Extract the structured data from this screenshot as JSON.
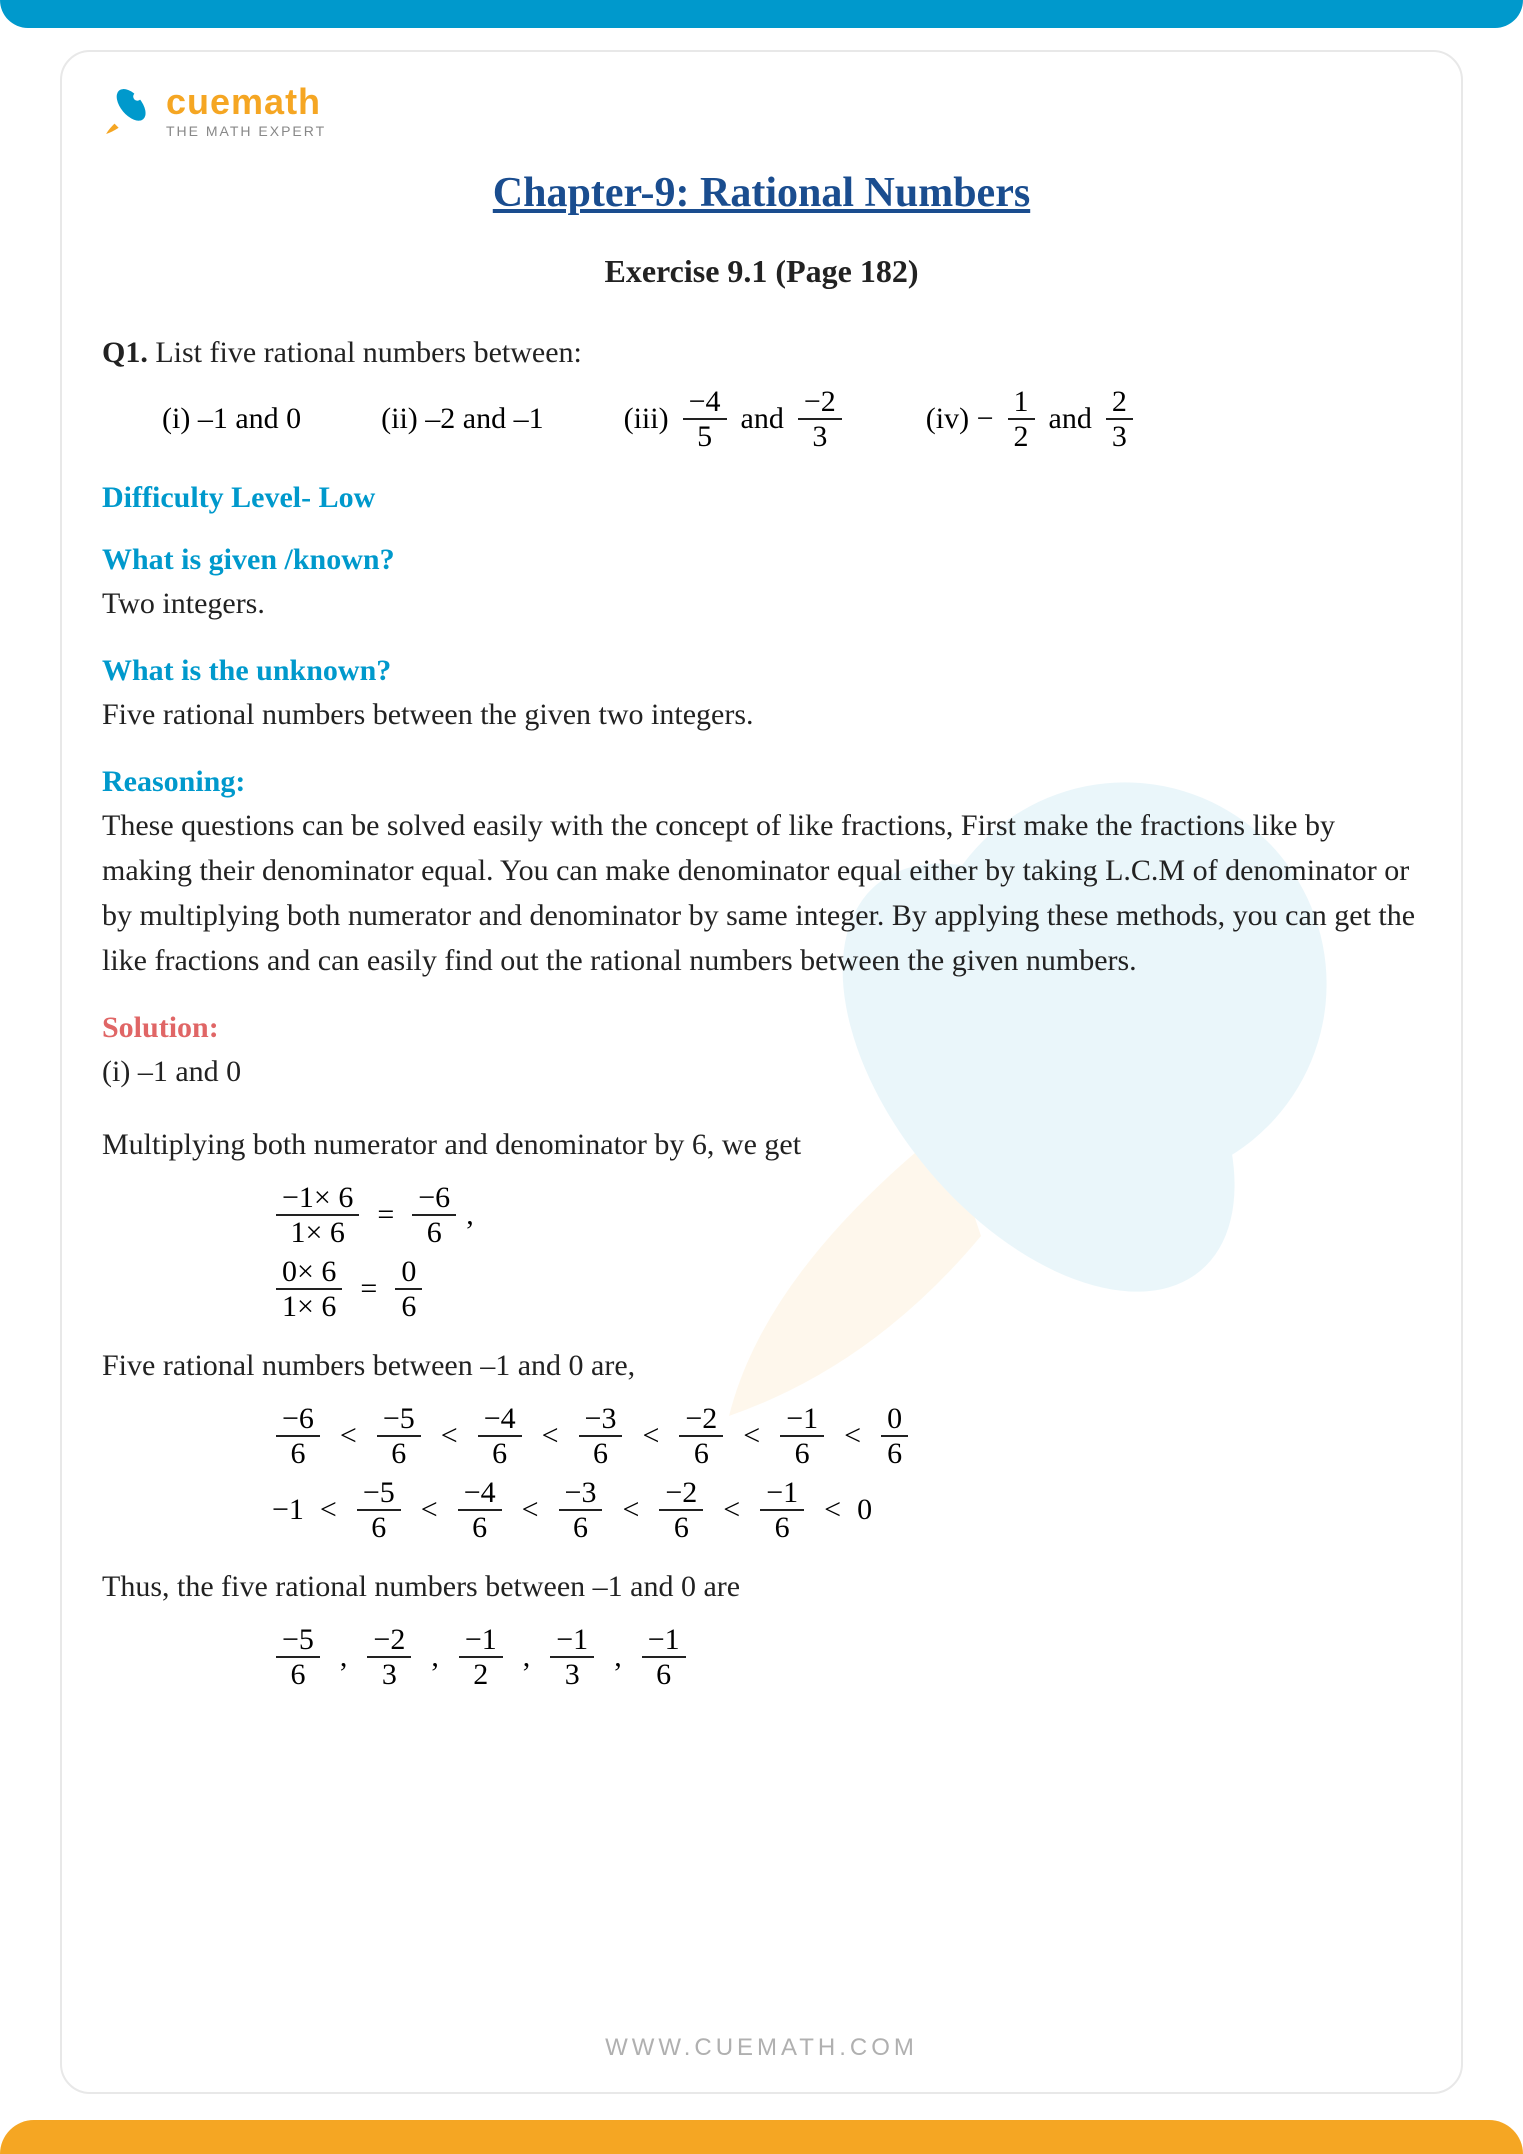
{
  "brand": {
    "name": "cuemath",
    "tagline": "THE MATH EXPERT",
    "logo_colors": {
      "body": "#f5a623",
      "tip": "#0099cc"
    },
    "footer_url": "WWW.CUEMATH.COM"
  },
  "chapter_title": "Chapter-9: Rational Numbers",
  "exercise_line": "Exercise 9.1 (Page 182)",
  "q1": {
    "prompt_prefix": "Q1.",
    "prompt": " List five rational numbers between:",
    "parts": {
      "i": {
        "label": "(i) –1 and 0"
      },
      "ii": {
        "label": "(ii) –2 and –1"
      },
      "iii": {
        "prefix": "(iii)",
        "frac_a": {
          "num": "−4",
          "den": "5"
        },
        "mid": "and",
        "frac_b": {
          "num": "−2",
          "den": "3"
        }
      },
      "iv": {
        "prefix": "(iv) −",
        "frac_a": {
          "num": "1",
          "den": "2"
        },
        "mid": "and",
        "frac_b": {
          "num": "2",
          "den": "3"
        }
      }
    }
  },
  "labels": {
    "difficulty": "Difficulty Level- Low",
    "given": "What is given /known?",
    "given_ans": "Two integers.",
    "unknown": "What is the unknown?",
    "unknown_ans": "Five rational numbers between the given two integers.",
    "reasoning": "Reasoning:",
    "reasoning_text": "These questions can be solved easily with the concept of like fractions, First make the fractions like by making their denominator equal. You can make denominator equal either by taking L.C.M of denominator or by multiplying both numerator and denominator by same integer. By applying these methods, you can get the like fractions and can easily find out the rational numbers between the given numbers.",
    "solution": "Solution:"
  },
  "solution": {
    "part_i": "(i) –1 and 0",
    "multiply_line": "Multiplying both numerator and denominator by 6, we get",
    "convert": {
      "a": {
        "lhs": {
          "num": "−1× 6",
          "den": "1× 6"
        },
        "rhs": {
          "num": "−6",
          "den": "6"
        },
        "suffix": ","
      },
      "b": {
        "lhs": {
          "num": "0× 6",
          "den": "1× 6"
        },
        "rhs": {
          "num": "0",
          "den": "6"
        }
      }
    },
    "between_intro": "Five rational numbers between –1 and 0 are,",
    "chain1": [
      {
        "num": "−6",
        "den": "6"
      },
      {
        "num": "−5",
        "den": "6"
      },
      {
        "num": "−4",
        "den": "6"
      },
      {
        "num": "−3",
        "den": "6"
      },
      {
        "num": "−2",
        "den": "6"
      },
      {
        "num": "−1",
        "den": "6"
      },
      {
        "num": "0",
        "den": "6"
      }
    ],
    "chain2_prefix": "−1",
    "chain2": [
      {
        "num": "−5",
        "den": "6"
      },
      {
        "num": "−4",
        "den": "6"
      },
      {
        "num": "−3",
        "den": "6"
      },
      {
        "num": "−2",
        "den": "6"
      },
      {
        "num": "−1",
        "den": "6"
      }
    ],
    "chain2_suffix": "0",
    "thus_line": "Thus, the five rational numbers between –1 and 0 are",
    "answers": [
      {
        "num": "−5",
        "den": "6"
      },
      {
        "num": "−2",
        "den": "3"
      },
      {
        "num": "−1",
        "den": "2"
      },
      {
        "num": "−1",
        "den": "3"
      },
      {
        "num": "−1",
        "den": "6"
      }
    ]
  },
  "colors": {
    "title": "#1a4d8f",
    "label_blue": "#0099cc",
    "label_red": "#e06666",
    "text": "#222222",
    "border_top": "#0099cc",
    "border_bottom": "#f5a623"
  }
}
